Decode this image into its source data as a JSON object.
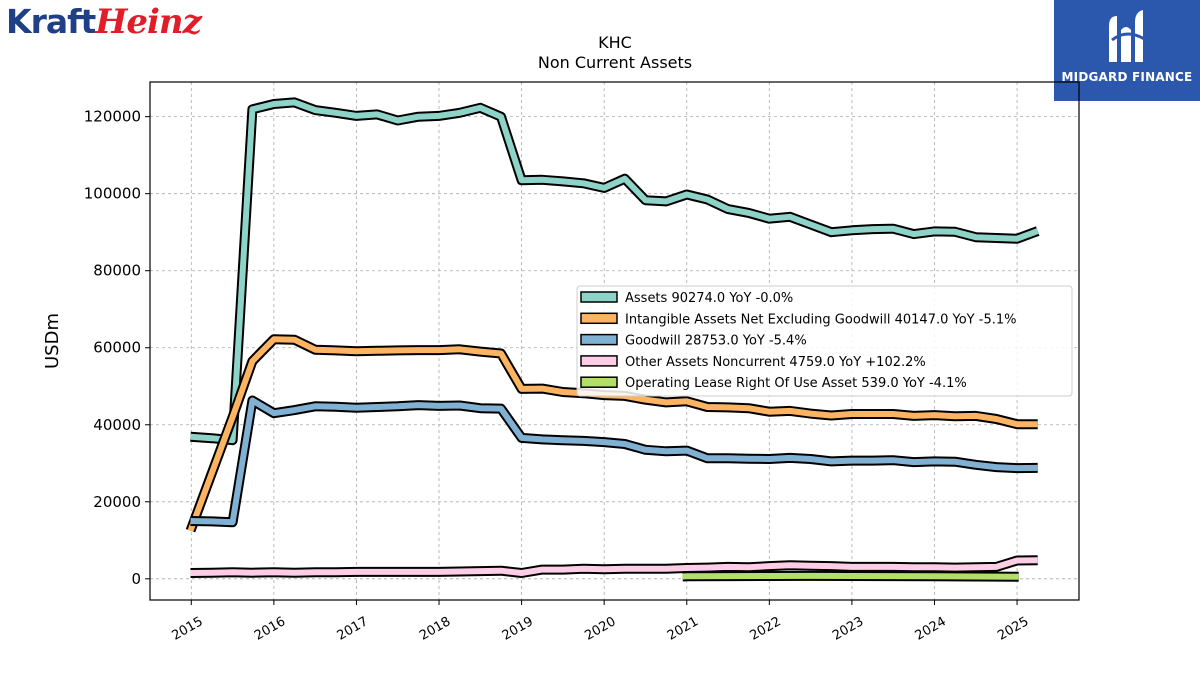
{
  "logos": {
    "brand_part1": "Kraft",
    "brand_part2": "Heinz",
    "watermark": "MIDGARD FINANCE"
  },
  "chart_data": {
    "type": "line",
    "title": "KHC",
    "subtitle": "Non Current  Assets",
    "xlabel": "",
    "ylabel": "USDm",
    "xlim": [
      2014.5,
      2025.75
    ],
    "ylim": [
      -5500,
      129000
    ],
    "grid": true,
    "legend_position": "center-right",
    "x_ticks": [
      "2015",
      "2016",
      "2017",
      "2018",
      "2019",
      "2020",
      "2021",
      "2022",
      "2023",
      "2024",
      "2025"
    ],
    "y_ticks": [
      0,
      20000,
      40000,
      60000,
      80000,
      100000,
      120000
    ],
    "series": [
      {
        "name": "Assets",
        "legend_label": "Assets  90274.0 YoY -0.0%",
        "color": "#8dd3c7",
        "points": [
          [
            2014.99,
            36900
          ],
          [
            2015.25,
            36500
          ],
          [
            2015.5,
            36000
          ],
          [
            2015.74,
            121900
          ],
          [
            2016.0,
            123300
          ],
          [
            2016.25,
            123700
          ],
          [
            2016.5,
            121700
          ],
          [
            2016.75,
            121000
          ],
          [
            2017.0,
            120200
          ],
          [
            2017.25,
            120600
          ],
          [
            2017.5,
            119000
          ],
          [
            2017.75,
            120000
          ],
          [
            2018.0,
            120200
          ],
          [
            2018.25,
            121000
          ],
          [
            2018.5,
            122300
          ],
          [
            2018.75,
            120000
          ],
          [
            2019.0,
            103500
          ],
          [
            2019.25,
            103600
          ],
          [
            2019.5,
            103200
          ],
          [
            2019.75,
            102700
          ],
          [
            2020.0,
            101500
          ],
          [
            2020.25,
            103900
          ],
          [
            2020.5,
            98300
          ],
          [
            2020.75,
            98000
          ],
          [
            2021.0,
            99800
          ],
          [
            2021.25,
            98500
          ],
          [
            2021.5,
            96000
          ],
          [
            2021.75,
            95000
          ],
          [
            2022.0,
            93500
          ],
          [
            2022.25,
            94000
          ],
          [
            2022.5,
            92000
          ],
          [
            2022.75,
            90000
          ],
          [
            2023.0,
            90500
          ],
          [
            2023.25,
            90800
          ],
          [
            2023.5,
            90900
          ],
          [
            2023.75,
            89500
          ],
          [
            2024.0,
            90200
          ],
          [
            2024.25,
            90100
          ],
          [
            2024.5,
            88700
          ],
          [
            2024.75,
            88500
          ],
          [
            2025.0,
            88300
          ],
          [
            2025.25,
            90274
          ]
        ]
      },
      {
        "name": "Intangible Assets Net Excluding Goodwill",
        "legend_label": "Intangible Assets Net Excluding Goodwill  40147.0 YoY -5.1%",
        "color": "#fdb462",
        "points": [
          [
            2014.99,
            12500
          ],
          [
            2015.25,
            27500
          ],
          [
            2015.5,
            42000
          ],
          [
            2015.74,
            56500
          ],
          [
            2016.0,
            62200
          ],
          [
            2016.25,
            62100
          ],
          [
            2016.5,
            59500
          ],
          [
            2016.75,
            59300
          ],
          [
            2017.0,
            59100
          ],
          [
            2017.25,
            59200
          ],
          [
            2017.5,
            59300
          ],
          [
            2017.75,
            59400
          ],
          [
            2018.0,
            59400
          ],
          [
            2018.25,
            59600
          ],
          [
            2018.5,
            59000
          ],
          [
            2018.75,
            58500
          ],
          [
            2019.0,
            49300
          ],
          [
            2019.25,
            49400
          ],
          [
            2019.5,
            48500
          ],
          [
            2019.75,
            48200
          ],
          [
            2020.0,
            47700
          ],
          [
            2020.25,
            47500
          ],
          [
            2020.5,
            46500
          ],
          [
            2020.75,
            45800
          ],
          [
            2021.0,
            46100
          ],
          [
            2021.25,
            44600
          ],
          [
            2021.5,
            44500
          ],
          [
            2021.75,
            44300
          ],
          [
            2022.0,
            43400
          ],
          [
            2022.25,
            43600
          ],
          [
            2022.5,
            42900
          ],
          [
            2022.75,
            42400
          ],
          [
            2023.0,
            42800
          ],
          [
            2023.25,
            42800
          ],
          [
            2023.5,
            42800
          ],
          [
            2023.75,
            42300
          ],
          [
            2024.0,
            42500
          ],
          [
            2024.25,
            42200
          ],
          [
            2024.5,
            42300
          ],
          [
            2024.75,
            41500
          ],
          [
            2025.0,
            40147
          ],
          [
            2025.25,
            40147
          ]
        ]
      },
      {
        "name": "Goodwill",
        "legend_label": "Goodwill  28753.0 YoY -5.4%",
        "color": "#80b1d3",
        "points": [
          [
            2014.99,
            15000
          ],
          [
            2015.25,
            14900
          ],
          [
            2015.5,
            14700
          ],
          [
            2015.74,
            46300
          ],
          [
            2016.0,
            43000
          ],
          [
            2016.25,
            43800
          ],
          [
            2016.5,
            44800
          ],
          [
            2016.75,
            44700
          ],
          [
            2017.0,
            44400
          ],
          [
            2017.25,
            44600
          ],
          [
            2017.5,
            44800
          ],
          [
            2017.75,
            45100
          ],
          [
            2018.0,
            44900
          ],
          [
            2018.25,
            45000
          ],
          [
            2018.5,
            44300
          ],
          [
            2018.75,
            44200
          ],
          [
            2019.0,
            36600
          ],
          [
            2019.25,
            36200
          ],
          [
            2019.5,
            36000
          ],
          [
            2019.75,
            35800
          ],
          [
            2020.0,
            35500
          ],
          [
            2020.25,
            35000
          ],
          [
            2020.5,
            33500
          ],
          [
            2020.75,
            33100
          ],
          [
            2021.0,
            33300
          ],
          [
            2021.25,
            31300
          ],
          [
            2021.5,
            31300
          ],
          [
            2021.75,
            31200
          ],
          [
            2022.0,
            31100
          ],
          [
            2022.25,
            31400
          ],
          [
            2022.5,
            31100
          ],
          [
            2022.75,
            30500
          ],
          [
            2023.0,
            30700
          ],
          [
            2023.25,
            30700
          ],
          [
            2023.5,
            30800
          ],
          [
            2023.75,
            30300
          ],
          [
            2024.0,
            30500
          ],
          [
            2024.25,
            30400
          ],
          [
            2024.5,
            29600
          ],
          [
            2024.75,
            29000
          ],
          [
            2025.0,
            28753
          ],
          [
            2025.25,
            28800
          ]
        ]
      },
      {
        "name": "Other Assets Noncurrent",
        "legend_label": "Other Assets Noncurrent  4759.0 YoY +102.2%",
        "color": "#fccde5",
        "points": [
          [
            2014.99,
            1500
          ],
          [
            2015.25,
            1600
          ],
          [
            2015.5,
            1700
          ],
          [
            2015.74,
            1600
          ],
          [
            2016.0,
            1700
          ],
          [
            2016.25,
            1600
          ],
          [
            2016.5,
            1700
          ],
          [
            2016.75,
            1700
          ],
          [
            2017.0,
            1800
          ],
          [
            2017.25,
            1800
          ],
          [
            2017.5,
            1800
          ],
          [
            2017.75,
            1800
          ],
          [
            2018.0,
            1800
          ],
          [
            2018.25,
            1900
          ],
          [
            2018.5,
            2000
          ],
          [
            2018.75,
            2100
          ],
          [
            2019.0,
            1500
          ],
          [
            2019.25,
            2400
          ],
          [
            2019.5,
            2400
          ],
          [
            2019.75,
            2600
          ],
          [
            2020.0,
            2500
          ],
          [
            2020.25,
            2600
          ],
          [
            2020.5,
            2600
          ],
          [
            2020.75,
            2600
          ],
          [
            2021.0,
            2800
          ],
          [
            2021.25,
            2900
          ],
          [
            2021.5,
            3100
          ],
          [
            2021.75,
            3000
          ],
          [
            2022.0,
            3300
          ],
          [
            2022.25,
            3500
          ],
          [
            2022.5,
            3400
          ],
          [
            2022.75,
            3300
          ],
          [
            2023.0,
            3100
          ],
          [
            2023.25,
            3100
          ],
          [
            2023.5,
            3100
          ],
          [
            2023.75,
            3000
          ],
          [
            2024.0,
            3000
          ],
          [
            2024.25,
            2900
          ],
          [
            2024.5,
            3000
          ],
          [
            2024.75,
            3100
          ],
          [
            2025.0,
            4759
          ],
          [
            2025.25,
            4800
          ]
        ]
      },
      {
        "name": "Operating Lease Right Of Use Asset",
        "legend_label": "Operating Lease Right Of Use Asset  539.0 YoY -4.1%",
        "color": "#b3de69",
        "points": [
          [
            2020.95,
            600
          ],
          [
            2021.0,
            650
          ],
          [
            2021.5,
            700
          ],
          [
            2022.0,
            720
          ],
          [
            2022.5,
            760
          ],
          [
            2023.0,
            720
          ],
          [
            2023.5,
            700
          ],
          [
            2024.0,
            650
          ],
          [
            2024.5,
            600
          ],
          [
            2025.02,
            539
          ]
        ]
      }
    ]
  }
}
